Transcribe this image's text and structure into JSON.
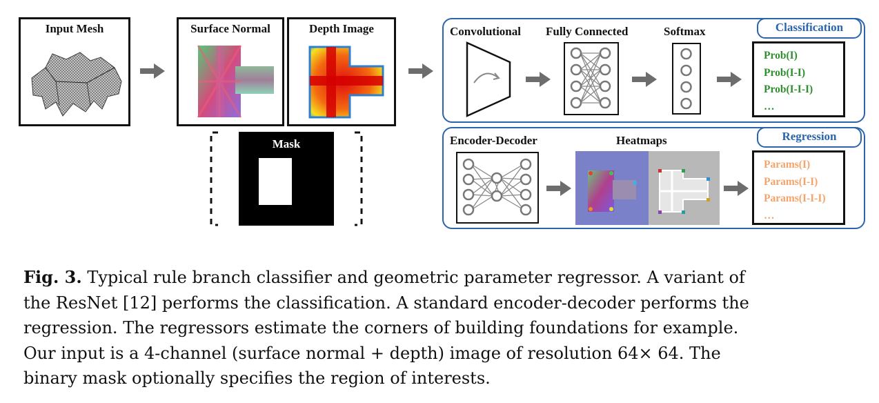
{
  "figure": {
    "input_mesh": {
      "title": "Input Mesh"
    },
    "surface_normal": {
      "title": "Surface Normal"
    },
    "depth_image": {
      "title": "Depth Image"
    },
    "mask": {
      "title": "Mask"
    },
    "classification": {
      "tag": "Classification",
      "stages": [
        "Convolutional",
        "Fully Connected",
        "Softmax"
      ],
      "outputs": [
        "Prob(I)",
        "Prob(I-I)",
        "Prob(I-I-I)",
        "…"
      ],
      "output_color": "#2f8f2f"
    },
    "regression": {
      "tag": "Regression",
      "stages": [
        "Encoder-Decoder",
        "Heatmaps"
      ],
      "outputs": [
        "Params(I)",
        "Params(I-I)",
        "Params(I-I-I)",
        "…"
      ],
      "output_color": "#f4a46a"
    },
    "module_border_color": "#2a64ad"
  },
  "caption": {
    "label": "Fig. 3.",
    "lines": [
      "Typical rule branch classifier and geometric parameter regressor. A variant of",
      "the ResNet [12] performs the classification. A standard encoder-decoder performs the",
      "regression. The regressors estimate the corners of building foundations for example.",
      "Our input is a 4-channel (surface normal + depth) image of resolution 64× 64. The",
      "binary mask optionally specifies the region of interests."
    ]
  }
}
